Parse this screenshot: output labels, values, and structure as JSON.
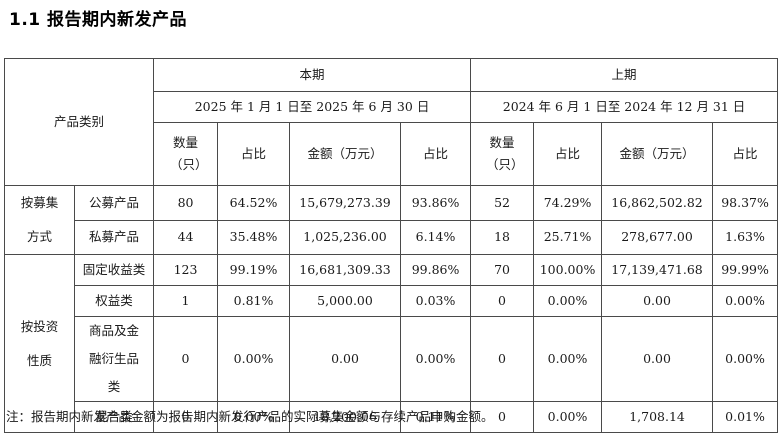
{
  "title": "1.1 报告期内新发产品",
  "header": {
    "category_label": "产品类别",
    "current_period": {
      "label": "本期",
      "range": "2025 年 1 月 1 日至 2025 年 6 月 30 日"
    },
    "previous_period": {
      "label": "上期",
      "range": "2024 年 6 月 1 日至 2024 年 12 月 31 日"
    },
    "columns": [
      "数量（只）",
      "占比",
      "金额（万元）",
      "占比",
      "数量（只）",
      "占比",
      "金额（万元）",
      "占比"
    ]
  },
  "groups": [
    {
      "label": "按募集方式",
      "rows": [
        {
          "name": "公募产品",
          "values": [
            "80",
            "64.52%",
            "15,679,273.39",
            "93.86%",
            "52",
            "74.29%",
            "16,862,502.82",
            "98.37%"
          ]
        },
        {
          "name": "私募产品",
          "values": [
            "44",
            "35.48%",
            "1,025,236.00",
            "6.14%",
            "18",
            "25.71%",
            "278,677.00",
            "1.63%"
          ]
        }
      ]
    },
    {
      "label": "按投资性质",
      "rows": [
        {
          "name": "固定收益类",
          "values": [
            "123",
            "99.19%",
            "16,681,309.33",
            "99.86%",
            "70",
            "100.00%",
            "17,139,471.68",
            "99.99%"
          ]
        },
        {
          "name": "权益类",
          "values": [
            "1",
            "0.81%",
            "5,000.00",
            "0.03%",
            "0",
            "0.00%",
            "0.00",
            "0.00%"
          ]
        },
        {
          "name": "商品及金融衍生品类",
          "values": [
            "0",
            "0.00%",
            "0.00",
            "0.00%",
            "0",
            "0.00%",
            "0.00",
            "0.00%"
          ]
        },
        {
          "name": "混合类",
          "values": [
            "0",
            "0.00%",
            "18,200.06",
            "0.11%",
            "0",
            "0.00%",
            "1,708.14",
            "0.01%"
          ]
        }
      ]
    }
  ],
  "note": "注：报告期内新发产品金额为报告期内新发行产品的实际募集金额与存续产品申购金额。"
}
